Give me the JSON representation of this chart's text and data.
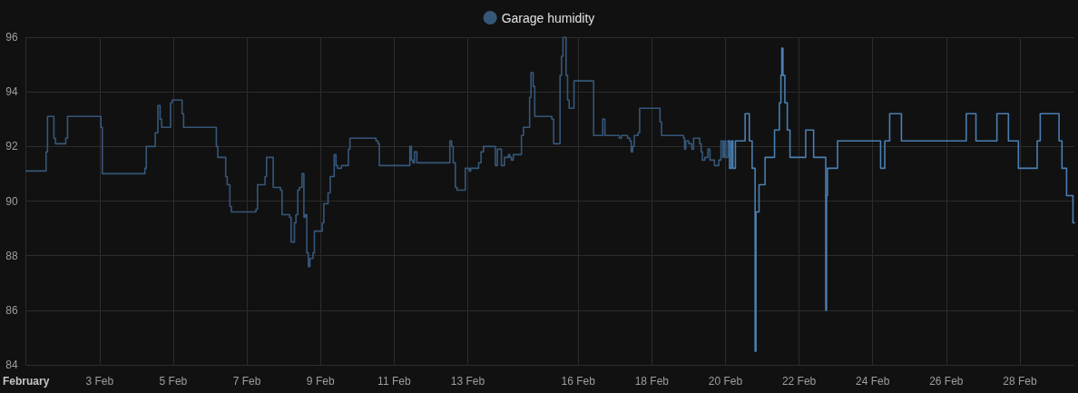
{
  "chart_data": {
    "type": "step",
    "series": [
      {
        "name": "Garage humidity",
        "color": "#36577a",
        "x": [
          "--02-01T00:00",
          "--02-01T13:05",
          "--02-01T14:00",
          "--02-01T18:10",
          "--02-01T19:10",
          "--02-02T01:55",
          "--02-02T03:05",
          "--02-03T00:50",
          "--02-03T01:45",
          "--02-04T05:30",
          "--02-04T06:25",
          "--02-04T12:15",
          "--02-04T14:00",
          "--02-04T15:25",
          "--02-04T16:25",
          "--02-04T22:15",
          "--02-04T23:15",
          "--02-05T05:45",
          "--02-05T06:45",
          "--02-06T04:05",
          "--02-06T05:00",
          "--02-06T10:10",
          "--02-06T11:10",
          "--02-06T12:55",
          "--02-06T13:55",
          "--02-07T05:55",
          "--02-07T06:55",
          "--02-07T11:50",
          "--02-07T12:50",
          "--02-07T17:10",
          "--02-07T21:55",
          "--02-07T22:55",
          "--02-08T03:50",
          "--02-08T04:50",
          "--02-08T07:00",
          "--02-08T08:00",
          "--02-08T09:10",
          "--02-08T10:10",
          "--02-08T11:55",
          "--02-08T13:10",
          "--02-08T14:05",
          "--02-08T15:05",
          "--02-08T16:05",
          "--02-08T17:05",
          "--02-08T19:05",
          "--02-08T20:00",
          "--02-09T01:10",
          "--02-09T02:10",
          "--02-09T04:55",
          "--02-09T06:20",
          "--02-09T08:55",
          "--02-09T10:05",
          "--02-09T11:05",
          "--02-09T13:40",
          "--02-09T18:10",
          "--02-09T19:10",
          "--02-10T12:10",
          "--02-10T13:30",
          "--02-10T14:20",
          "--02-11T10:15",
          "--02-11T11:15",
          "--02-11T12:15",
          "--02-11T13:15",
          "--02-11T14:50",
          "--02-12T12:20",
          "--02-12T13:30",
          "--02-12T14:30",
          "--02-12T15:55",
          "--02-12T17:05",
          "--02-12T22:25",
          "--02-13T01:00",
          "--02-13T01:55",
          "--02-13T07:05",
          "--02-13T08:40",
          "--02-13T10:15",
          "--02-13T18:00",
          "--02-13T19:20",
          "--02-13T21:55",
          "--02-13T23:55",
          "--02-14T02:30",
          "--02-14T03:25",
          "--02-14T04:25",
          "--02-14T05:40",
          "--02-14T11:00",
          "--02-14T12:20",
          "--02-14T16:20",
          "--02-14T17:15",
          "--02-14T18:40",
          "--02-14T19:40",
          "--02-15T06:50",
          "--02-15T08:00",
          "--02-15T12:10",
          "--02-15T13:10",
          "--02-15T14:05",
          "--02-15T16:05",
          "--02-15T17:05",
          "--02-15T18:05",
          "--02-15T21:15",
          "--02-16T10:05",
          "--02-16T16:00",
          "--02-16T17:25",
          "--02-17T02:50",
          "--02-17T04:15",
          "--02-17T08:10",
          "--02-17T09:45",
          "--02-17T10:35",
          "--02-17T11:30",
          "--02-17T12:35",
          "--02-17T15:05",
          "--02-17T16:05",
          "--02-18T05:20",
          "--02-18T06:20",
          "--02-18T20:45",
          "--02-18T21:20",
          "--02-18T22:10",
          "--02-19T00:05",
          "--02-19T02:05",
          "--02-19T03:15",
          "--02-19T07:10",
          "--02-19T08:10",
          "--02-19T09:00",
          "--02-19T10:35",
          "--02-19T12:35",
          "--02-19T13:55",
          "--02-19T16:50",
          "--02-19T19:40",
          "--02-19T21:05",
          "--02-19T22:20",
          "--02-19T23:15",
          "--02-20T00:15",
          "--02-20T01:40"
        ],
        "values": [
          91.1,
          91.8,
          93.1,
          92.3,
          92.1,
          92.3,
          93.1,
          92.7,
          91.0,
          91.2,
          92.0,
          92.5,
          93.5,
          93.0,
          92.7,
          93.6,
          93.7,
          93.2,
          92.7,
          92.0,
          91.6,
          90.9,
          90.6,
          89.8,
          89.6,
          89.7,
          90.6,
          90.9,
          91.6,
          90.5,
          90.4,
          89.5,
          89.4,
          88.5,
          89.2,
          89.5,
          90.4,
          90.5,
          91.0,
          89.4,
          89.5,
          88.1,
          87.6,
          87.9,
          88.1,
          88.9,
          89.2,
          89.9,
          90.3,
          90.9,
          91.7,
          91.3,
          91.2,
          91.3,
          91.9,
          92.3,
          92.2,
          92.1,
          91.3,
          92.0,
          91.5,
          91.4,
          91.8,
          91.4,
          92.2,
          92.0,
          91.4,
          90.5,
          90.4,
          91.2,
          91.1,
          91.2,
          91.4,
          91.8,
          92.0,
          91.3,
          91.9,
          91.3,
          91.6,
          91.7,
          91.6,
          91.5,
          91.7,
          92.4,
          92.7,
          93.8,
          94.7,
          94.2,
          93.1,
          93.0,
          92.1,
          94.6,
          95.3,
          96.0,
          94.6,
          93.7,
          93.4,
          94.4,
          92.4,
          93.0,
          92.4,
          92.3,
          92.4,
          92.3,
          92.2,
          91.8,
          92.0,
          92.4,
          92.5,
          93.4,
          92.9,
          92.4,
          92.3,
          91.9,
          92.2,
          92.1,
          91.9,
          92.3,
          92.1,
          91.8,
          91.5,
          91.6,
          91.9,
          91.5,
          91.3,
          91.5,
          92.2,
          91.6,
          92.2,
          91.6,
          92.2
        ]
      },
      {
        "color": "#4a7fb2",
        "x": [
          "--02-20T01:40",
          "--02-20T02:40",
          "--02-20T03:50",
          "--02-20T04:50",
          "--02-20T06:30",
          "--02-20T12:50",
          "--02-20T15:35",
          "--02-20T17:25",
          "--02-20T19:20",
          "--02-20T19:55",
          "--02-20T21:55",
          "--02-21T01:50",
          "--02-21T08:00",
          "--02-21T11:10",
          "--02-21T12:10",
          "--02-21T12:45",
          "--02-21T13:30",
          "--02-21T14:45",
          "--02-21T16:20",
          "--02-21T18:05",
          "--02-22T04:20",
          "--02-22T09:30",
          "--02-22T17:25",
          "--02-22T17:55",
          "--02-22T18:30",
          "--02-23T01:05",
          "--02-24T05:10",
          "--02-24T07:55",
          "--02-24T11:05",
          "--02-24T18:45",
          "--02-26T13:00",
          "--02-26T19:20",
          "--02-27T09:00",
          "--02-27T16:30",
          "--02-27T23:00",
          "--02-28T11:15",
          "--02-28T13:15",
          "--02-29T01:30",
          "--02-29T03:25",
          "--02-29T06:25",
          "--02-29T10:35",
          "--02-29T11:30"
        ],
        "values": [
          92.2,
          91.2,
          92.2,
          91.2,
          92.2,
          93.2,
          92.2,
          91.2,
          84.5,
          89.6,
          90.6,
          91.6,
          92.6,
          93.6,
          94.6,
          95.6,
          94.6,
          93.6,
          92.6,
          91.6,
          92.6,
          91.6,
          86.0,
          90.2,
          91.2,
          92.2,
          91.2,
          92.2,
          93.2,
          92.2,
          93.2,
          92.2,
          93.2,
          92.2,
          91.2,
          92.2,
          93.2,
          92.2,
          91.2,
          90.2,
          89.2,
          89.2
        ]
      }
    ],
    "xlim": [
      "--02-01T00:00",
      "--02-29T11:30"
    ],
    "xticks": [
      {
        "value": "--02-01T00:00",
        "label": "February"
      },
      {
        "value": "--02-03T00:00",
        "label": "3 Feb"
      },
      {
        "value": "--02-05T00:00",
        "label": "5 Feb"
      },
      {
        "value": "--02-07T00:00",
        "label": "7 Feb"
      },
      {
        "value": "--02-09T00:00",
        "label": "9 Feb"
      },
      {
        "value": "--02-11T00:00",
        "label": "11 Feb"
      },
      {
        "value": "--02-13T00:00",
        "label": "13 Feb"
      },
      {
        "value": "--02-16T00:00",
        "label": "16 Feb"
      },
      {
        "value": "--02-18T00:00",
        "label": "18 Feb"
      },
      {
        "value": "--02-20T00:00",
        "label": "20 Feb"
      },
      {
        "value": "--02-22T00:00",
        "label": "22 Feb"
      },
      {
        "value": "--02-24T00:00",
        "label": "24 Feb"
      },
      {
        "value": "--02-26T00:00",
        "label": "26 Feb"
      },
      {
        "value": "--02-28T00:00",
        "label": "28 Feb"
      }
    ],
    "ylim": [
      84,
      96
    ],
    "yticks": [
      84,
      86,
      88,
      90,
      92,
      94,
      96
    ],
    "grid": true,
    "legend": "top",
    "marker": "none"
  }
}
